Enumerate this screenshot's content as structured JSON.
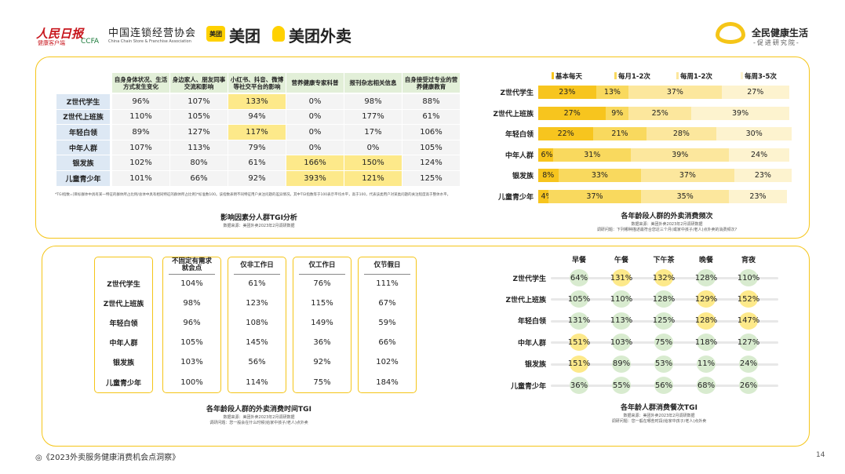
{
  "header": {
    "people_daily": "人民日报",
    "people_daily_sub": "健康客户端",
    "ccfa_name": "中国连锁经营协会",
    "ccfa_abbr": "CCFA",
    "ccfa_en": "China Chain Store & Franchise Association",
    "meituan_icon": "美团",
    "meituan": "美团",
    "meituan_waimai": "美团外卖",
    "brand": "全民健康生活",
    "brand_sub": "-促进研究院-"
  },
  "table1": {
    "columns": [
      "自身身体状况、生活方式发生变化",
      "身边家人、朋友同事交流和影响",
      "小红书、抖音、微博等社交平台的影响",
      "营养健康专家科普",
      "报刊杂志相关信息",
      "自身接受过专业的营养健康教育"
    ],
    "rows": [
      {
        "label": "Z世代学生",
        "cells": [
          "96%",
          "107%",
          "133%",
          "0%",
          "98%",
          "88%"
        ]
      },
      {
        "label": "Z世代上班族",
        "cells": [
          "110%",
          "105%",
          "94%",
          "0%",
          "177%",
          "61%"
        ]
      },
      {
        "label": "年轻白领",
        "cells": [
          "89%",
          "127%",
          "117%",
          "0%",
          "17%",
          "106%"
        ]
      },
      {
        "label": "中年人群",
        "cells": [
          "107%",
          "113%",
          "79%",
          "0%",
          "0%",
          "105%"
        ]
      },
      {
        "label": "银发族",
        "cells": [
          "102%",
          "80%",
          "61%",
          "166%",
          "150%",
          "124%"
        ]
      },
      {
        "label": "儿童青少年",
        "cells": [
          "101%",
          "66%",
          "92%",
          "393%",
          "121%",
          "125%"
        ]
      }
    ],
    "highlights": [
      [
        0,
        2
      ],
      [
        2,
        2
      ],
      [
        4,
        3
      ],
      [
        4,
        4
      ],
      [
        5,
        3
      ],
      [
        5,
        4
      ]
    ],
    "note": "*TGI指数=[目标群体中具有某一特征的群体所占比例/总体中具有相同特征的群体所占比例]*标准数100。该指数表明不同特征用户关注问题的差异情况，其中TGI指数等于100表示平均水平，高于100，代表该类用户对某类问题的关注程度高于整体水平。",
    "title": "影响因素分人群TGI分析",
    "source": "数据来源：美团外卖2023年2月调研数据"
  },
  "frequency": {
    "type": "stacked-bar",
    "categories": [
      "Z世代学生",
      "Z世代上班族",
      "年轻白领",
      "中年人群",
      "银发族",
      "儿童青少年"
    ],
    "series": [
      {
        "name": "基本每天",
        "color": "#f7c51e",
        "values": [
          23,
          27,
          22,
          6,
          8,
          4
        ],
        "value_labels": [
          "23%",
          "27%",
          "22%",
          "6%",
          "8%",
          "4%"
        ]
      },
      {
        "name": "每月1-2次",
        "color": "#f9d95e",
        "values": [
          13,
          9,
          21,
          31,
          33,
          37
        ],
        "value_labels": [
          "13%",
          "9%",
          "21%",
          "31%",
          "33%",
          "37%"
        ]
      },
      {
        "name": "每周1-2次",
        "color": "#fce79d",
        "values": [
          37,
          25,
          28,
          39,
          37,
          35
        ],
        "value_labels": [
          "37%",
          "25%",
          "28%",
          "39%",
          "37%",
          "35%"
        ]
      },
      {
        "name": "每周3-5次",
        "color": "#fdf3cf",
        "values": [
          27,
          39,
          30,
          24,
          23,
          23
        ],
        "value_labels": [
          "27%",
          "39%",
          "30%",
          "24%",
          "23%",
          "23%"
        ]
      }
    ],
    "title": "各年龄段人群的外卖消费频次",
    "source": "数据来源：美团外卖2023年2月调研数据",
    "question": "调研问题：下列哪种描述最符合您近三个月(或家中孩子/老人)点外卖的消费频次?"
  },
  "table2": {
    "columns": [
      "不固定有需求就会点",
      "仅非工作日",
      "仅工作日",
      "仅节假日"
    ],
    "rows": [
      {
        "label": "Z世代学生",
        "cells": [
          "104%",
          "61%",
          "76%",
          "111%"
        ]
      },
      {
        "label": "Z世代上班族",
        "cells": [
          "98%",
          "123%",
          "115%",
          "67%"
        ]
      },
      {
        "label": "年轻白领",
        "cells": [
          "96%",
          "108%",
          "149%",
          "59%"
        ]
      },
      {
        "label": "中年人群",
        "cells": [
          "105%",
          "145%",
          "36%",
          "66%"
        ]
      },
      {
        "label": "银发族",
        "cells": [
          "103%",
          "56%",
          "92%",
          "102%"
        ]
      },
      {
        "label": "儿童青少年",
        "cells": [
          "100%",
          "114%",
          "75%",
          "184%"
        ]
      }
    ],
    "title": "各年龄段人群的外卖消费时间TGI",
    "source": "数据来源：美团外卖2023年2月调研数据",
    "question": "调研问题：您一般会在什么时候(给家中孩子/老人)点外卖"
  },
  "table3": {
    "columns": [
      "早餐",
      "午餐",
      "下午茶",
      "晚餐",
      "宵夜"
    ],
    "rows": [
      {
        "label": "Z世代学生",
        "cells": [
          "64%",
          "131%",
          "132%",
          "128%",
          "110%"
        ]
      },
      {
        "label": "Z世代上班族",
        "cells": [
          "105%",
          "110%",
          "128%",
          "129%",
          "152%"
        ]
      },
      {
        "label": "年轻白领",
        "cells": [
          "131%",
          "113%",
          "125%",
          "128%",
          "147%"
        ]
      },
      {
        "label": "中年人群",
        "cells": [
          "151%",
          "103%",
          "75%",
          "118%",
          "127%"
        ]
      },
      {
        "label": "银发族",
        "cells": [
          "151%",
          "89%",
          "53%",
          "11%",
          "24%"
        ]
      },
      {
        "label": "儿童青少年",
        "cells": [
          "36%",
          "55%",
          "56%",
          "68%",
          "26%"
        ]
      }
    ],
    "highlights": [
      [
        0,
        1
      ],
      [
        0,
        2
      ],
      [
        1,
        3
      ],
      [
        1,
        4
      ],
      [
        2,
        3
      ],
      [
        2,
        4
      ],
      [
        3,
        0
      ],
      [
        4,
        0
      ]
    ],
    "title": "各年龄人群消费餐次TGI",
    "source": "数据来源：美团外卖2023年2月调研数据",
    "question": "调研问题：您一般在哪些时段(给家中孩子/老人)点外卖"
  },
  "footer": {
    "report": "◎《2023外卖服务健康消费机会点洞察》",
    "page": "14"
  }
}
